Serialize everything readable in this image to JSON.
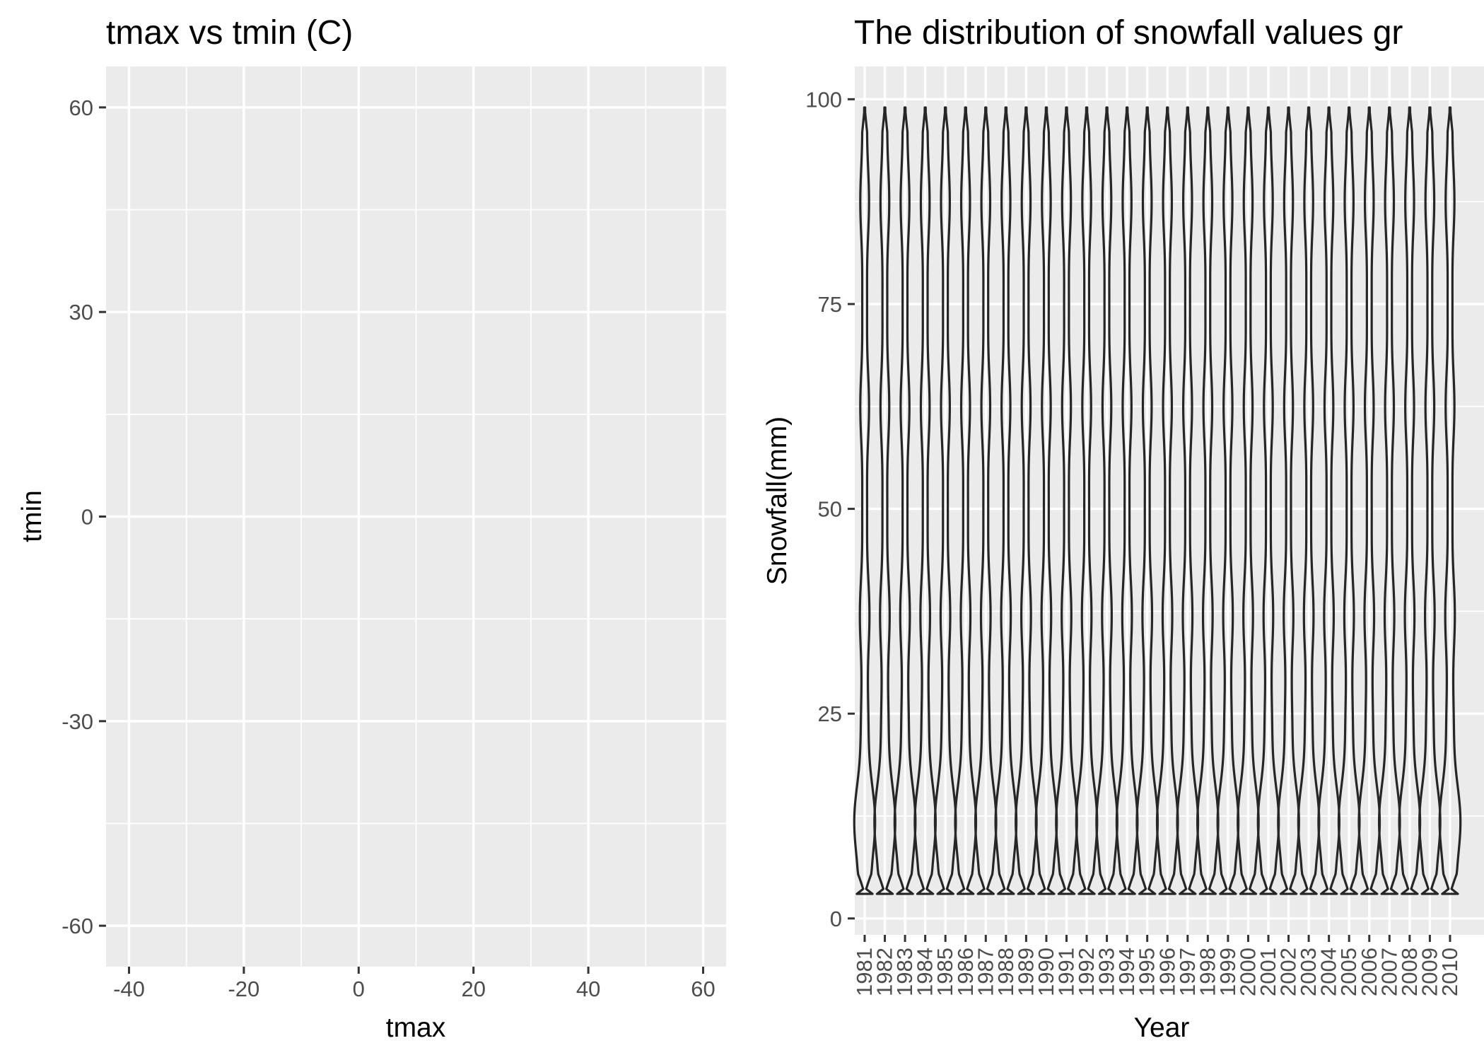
{
  "chart_data": [
    {
      "type": "scatter",
      "title": "tmax vs tmin (C)",
      "xlabel": "tmax",
      "ylabel": "tmin",
      "xlim": [
        -44,
        64
      ],
      "ylim": [
        -66,
        66
      ],
      "x_ticks": [
        -40,
        -20,
        0,
        20,
        40,
        60
      ],
      "y_ticks": [
        60,
        30,
        0,
        -30,
        -60
      ],
      "x_tick_labels": [
        "-40",
        "-20",
        "0",
        "20",
        "40",
        "60"
      ],
      "y_tick_labels": [
        "60",
        "30",
        "0",
        "-30",
        "-60"
      ],
      "points": [],
      "grid": true
    },
    {
      "type": "violin",
      "title": "The distribution of snowfall values gr",
      "xlabel": "Year",
      "ylabel": "Snowfall(mm)",
      "ylim": [
        -2,
        104
      ],
      "y_ticks": [
        0,
        25,
        50,
        75,
        100
      ],
      "y_tick_labels": [
        "0",
        "25",
        "50",
        "75",
        "100"
      ],
      "categories": [
        "1981",
        "1982",
        "1983",
        "1984",
        "1985",
        "1986",
        "1987",
        "1988",
        "1989",
        "1990",
        "1991",
        "1992",
        "1993",
        "1994",
        "1995",
        "1996",
        "1997",
        "1998",
        "1999",
        "2000",
        "2001",
        "2002",
        "2003",
        "2004",
        "2005",
        "2006",
        "2007",
        "2008",
        "2009",
        "2010"
      ],
      "violin_min": 3,
      "violin_max": 99,
      "grid": true
    }
  ]
}
